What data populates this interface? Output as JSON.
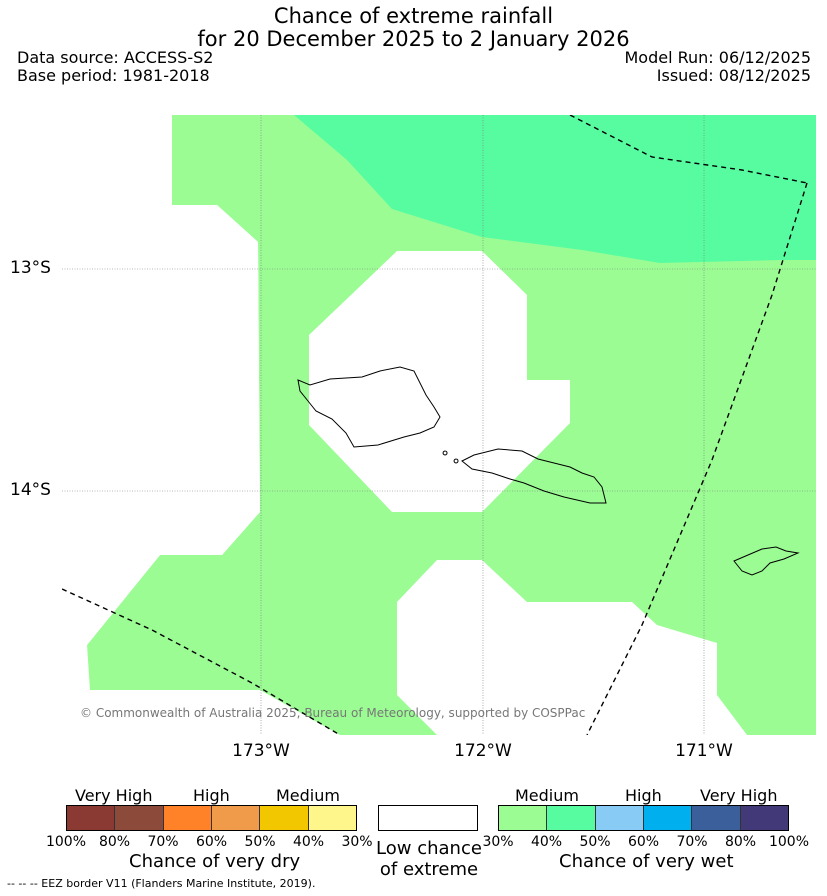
{
  "title": {
    "line1": "Chance of extreme rainfall",
    "line2": "for 20 December 2025 to 2 January 2026"
  },
  "meta": {
    "data_source": "Data source: ACCESS-S2",
    "base_period": "Base period: 1981-2018",
    "model_run": "Model Run: 06/12/2025",
    "issued": "Issued: 08/12/2025"
  },
  "map": {
    "lat_labels": [
      "13°S",
      "14°S"
    ],
    "lon_labels": [
      "173°W",
      "172°W",
      "171°W"
    ],
    "copyright": "© Commonwealth of Australia 2025, Bureau of Meteorology, supported by COSPPac",
    "colors": {
      "medium_wet": "#9cfc94",
      "medium_high_wet": "#58fca0",
      "low_chance": "#ffffff",
      "coast": "#000000",
      "eez": "#000000"
    }
  },
  "legend": {
    "dry": {
      "categories": [
        "Very High",
        "High",
        "Medium"
      ],
      "ticks": [
        "100%",
        "80%",
        "70%",
        "60%",
        "50%",
        "40%",
        "30%"
      ],
      "colors": [
        "#8b3a33",
        "#8b4a3a",
        "#ff8128",
        "#f09b4a",
        "#f2c700",
        "#fef68a"
      ],
      "label": "Chance of very dry"
    },
    "low": {
      "label_line1": "Low chance",
      "label_line2": "of extreme"
    },
    "wet": {
      "categories": [
        "Medium",
        "High",
        "Very High"
      ],
      "ticks": [
        "30%",
        "40%",
        "50%",
        "60%",
        "70%",
        "80%",
        "100%"
      ],
      "colors": [
        "#9cfc94",
        "#58fca0",
        "#88ccf6",
        "#00b0ee",
        "#3a5f9a",
        "#423a78"
      ],
      "label": "Chance of very wet"
    }
  },
  "footer": "-- -- -- EEZ border V11 (Flanders Marine Institute, 2019)."
}
